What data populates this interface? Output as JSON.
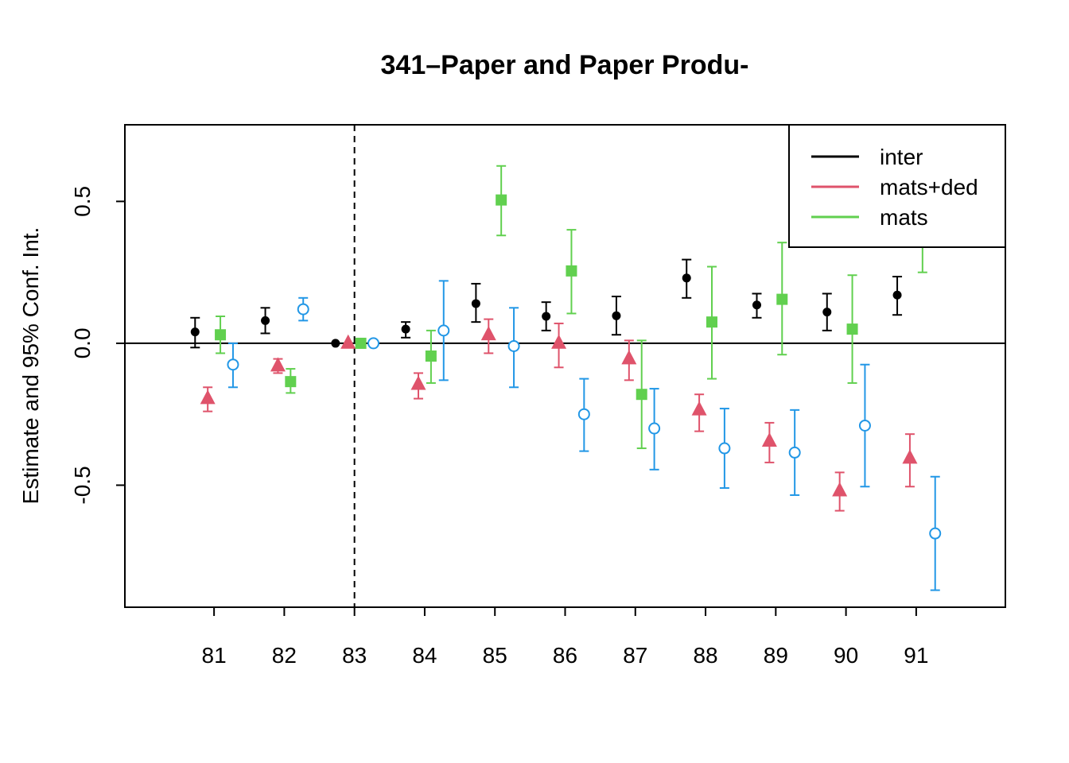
{
  "chart_data": {
    "type": "scatter",
    "title": "341–Paper and Paper Produ-",
    "xlabel": "",
    "ylabel": "Estimate and 95% Conf. Int.",
    "x_ticks": [
      81,
      82,
      83,
      84,
      85,
      86,
      87,
      88,
      89,
      90,
      91
    ],
    "y_ticks": [
      -0.5,
      0.0,
      0.5
    ],
    "y_tick_labels": [
      "-0.5",
      "0.0",
      "0.5"
    ],
    "xlim": [
      79.73,
      92.27
    ],
    "ylim": [
      -0.93,
      0.77
    ],
    "reference_x": 83,
    "reference_y": 0,
    "grid": false,
    "legend_position": "top-right",
    "legend": [
      {
        "label": "inter",
        "color": "#000000"
      },
      {
        "label": "mats+ded",
        "color": "#DF536B"
      },
      {
        "label": "mats",
        "color": "#61D04F"
      }
    ],
    "series": [
      {
        "color": "#000000",
        "marker": "filled-circle",
        "offset": -0.27,
        "x": [
          81,
          82,
          83,
          84,
          85,
          86,
          87,
          88,
          89,
          90,
          91
        ],
        "y": [
          0.04,
          0.08,
          0.0,
          0.05,
          0.14,
          0.095,
          0.097,
          0.23,
          0.135,
          0.11,
          0.17
        ],
        "lower": [
          -0.015,
          0.035,
          0.0,
          0.02,
          0.075,
          0.045,
          0.03,
          0.16,
          0.09,
          0.045,
          0.1
        ],
        "upper": [
          0.09,
          0.125,
          0.0,
          0.075,
          0.21,
          0.145,
          0.165,
          0.295,
          0.175,
          0.175,
          0.235
        ]
      },
      {
        "color": "#DF536B",
        "marker": "filled-triangle",
        "offset": -0.09,
        "x": [
          81,
          82,
          83,
          84,
          85,
          86,
          87,
          88,
          89,
          90,
          91
        ],
        "y": [
          -0.195,
          -0.08,
          0.0,
          -0.145,
          0.03,
          0.0,
          -0.055,
          -0.235,
          -0.345,
          -0.52,
          -0.405
        ],
        "lower": [
          -0.24,
          -0.105,
          0.0,
          -0.195,
          -0.035,
          -0.085,
          -0.13,
          -0.31,
          -0.42,
          -0.59,
          -0.505
        ],
        "upper": [
          -0.155,
          -0.055,
          0.0,
          -0.105,
          0.085,
          0.07,
          0.01,
          -0.18,
          -0.28,
          -0.455,
          -0.32
        ]
      },
      {
        "color": "#61D04F",
        "marker": "filled-square",
        "offset": 0.09,
        "x": [
          81,
          82,
          83,
          84,
          85,
          86,
          87,
          88,
          89,
          90,
          91
        ],
        "y": [
          0.03,
          -0.135,
          0.0,
          -0.045,
          0.505,
          0.255,
          -0.18,
          0.075,
          0.155,
          0.05,
          0.44
        ],
        "lower": [
          -0.035,
          -0.175,
          0.0,
          -0.14,
          0.38,
          0.105,
          -0.37,
          -0.125,
          -0.04,
          -0.14,
          0.25
        ],
        "upper": [
          0.095,
          -0.09,
          0.0,
          0.045,
          0.625,
          0.4,
          0.01,
          0.27,
          0.355,
          0.24,
          0.63
        ]
      },
      {
        "color": "#2297E6",
        "marker": "open-circle",
        "offset": 0.27,
        "x": [
          81,
          82,
          83,
          84,
          85,
          86,
          87,
          88,
          89,
          90,
          91
        ],
        "y": [
          -0.075,
          0.12,
          0.0,
          0.045,
          -0.01,
          -0.25,
          -0.3,
          -0.37,
          -0.385,
          -0.29,
          -0.67
        ],
        "lower": [
          -0.155,
          0.08,
          0.0,
          -0.13,
          -0.155,
          -0.38,
          -0.445,
          -0.51,
          -0.535,
          -0.505,
          -0.87
        ],
        "upper": [
          0.0,
          0.16,
          0.0,
          0.22,
          0.125,
          -0.125,
          -0.16,
          -0.23,
          -0.235,
          -0.075,
          -0.47
        ]
      }
    ]
  }
}
